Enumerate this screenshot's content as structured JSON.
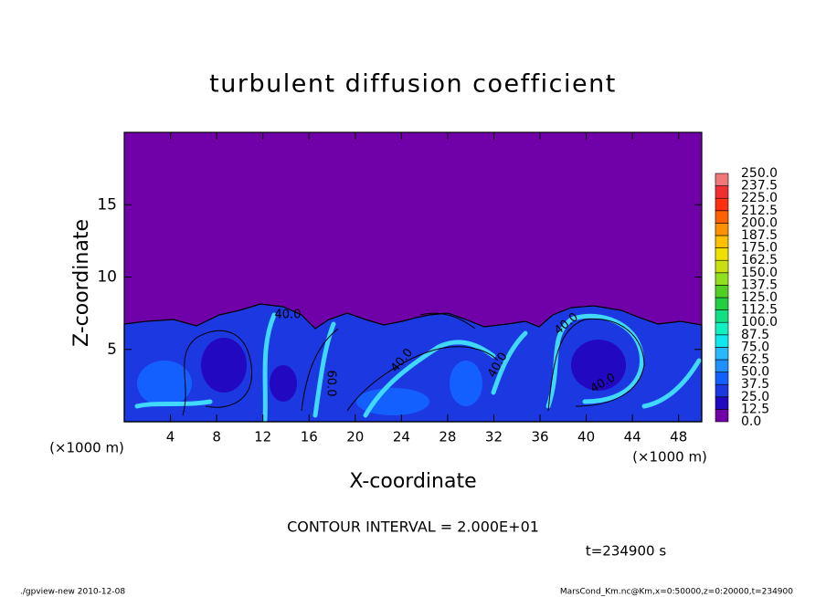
{
  "chart_data": {
    "type": "contour",
    "title": "turbulent diffusion coefficient",
    "xlabel": "X-coordinate",
    "ylabel": "Z-coordinate",
    "x_unit_labels": [
      "(×1000 m)",
      "(×1000 m)"
    ],
    "xlim": [
      0,
      50
    ],
    "ylim": [
      0,
      20
    ],
    "xticks": [
      4,
      8,
      12,
      16,
      20,
      24,
      28,
      32,
      36,
      40,
      44,
      48
    ],
    "yticks": [
      5,
      10,
      15
    ],
    "contour_labels": [
      "40.0",
      "40.0",
      "40.0",
      "40.0",
      "40.0",
      "60.0"
    ],
    "colorbar": {
      "levels": [
        {
          "value": 0,
          "label": "0.0"
        },
        {
          "value": 12.5,
          "label": "12.5"
        },
        {
          "value": 25,
          "label": "25.0"
        },
        {
          "value": 37.5,
          "label": "37.5"
        },
        {
          "value": 50,
          "label": "50.0"
        },
        {
          "value": 62.5,
          "label": "62.5"
        },
        {
          "value": 75,
          "label": "75.0"
        },
        {
          "value": 87.5,
          "label": "87.5"
        },
        {
          "value": 100,
          "label": "100.0"
        },
        {
          "value": 112.5,
          "label": "112.5"
        },
        {
          "value": 125,
          "label": "125.0"
        },
        {
          "value": 137.5,
          "label": "137.5"
        },
        {
          "value": 150,
          "label": "150.0"
        },
        {
          "value": 162.5,
          "label": "162.5"
        },
        {
          "value": 175,
          "label": "175.0"
        },
        {
          "value": 187.5,
          "label": "187.5"
        },
        {
          "value": 200,
          "label": "200.0"
        },
        {
          "value": 212.5,
          "label": "212.5"
        },
        {
          "value": 225,
          "label": "225.0"
        },
        {
          "value": 237.5,
          "label": "237.5"
        },
        {
          "value": 250,
          "label": "250.0"
        }
      ],
      "colors": [
        "#7000a8",
        "#2208c0",
        "#1c38e0",
        "#1460ff",
        "#1e90ff",
        "#28b8ff",
        "#10e8f0",
        "#10f0c0",
        "#10e080",
        "#20d040",
        "#50d020",
        "#90e020",
        "#c8e010",
        "#f0e000",
        "#ffc000",
        "#ff9000",
        "#ff6000",
        "#ff3010",
        "#f03030",
        "#f07878"
      ]
    },
    "contour_interval_label": "CONTOUR INTERVAL = 2.000E+01",
    "time_label": "t=234900 s",
    "footer_left": "./gpview-new   2010-12-08",
    "footer_right": "MarsCond_Km.nc@Km,x=0:50000,z=0:20000,t=234900"
  }
}
